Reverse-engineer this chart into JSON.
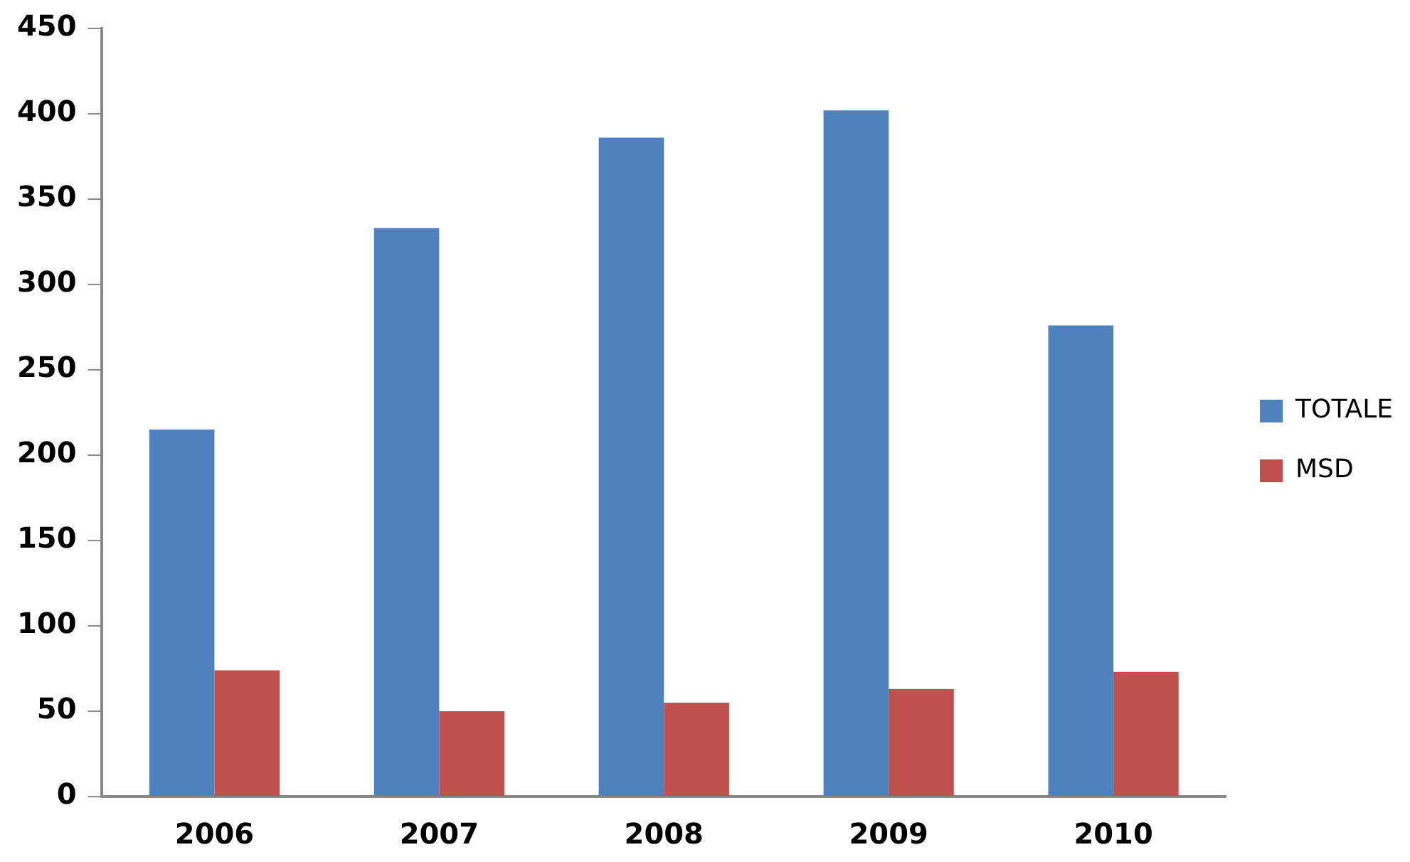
{
  "chart_data": {
    "type": "bar",
    "categories": [
      "2006",
      "2007",
      "2008",
      "2009",
      "2010"
    ],
    "series": [
      {
        "name": "TOTALE",
        "color": "#4f81bd",
        "values": [
          215,
          333,
          386,
          402,
          276
        ]
      },
      {
        "name": "MSD",
        "color": "#c0504d",
        "values": [
          74,
          50,
          55,
          63,
          73
        ]
      }
    ],
    "ylim": [
      0,
      450
    ],
    "yticks": [
      0,
      50,
      100,
      150,
      200,
      250,
      300,
      350,
      400,
      450
    ],
    "grid": false,
    "legend": "right"
  }
}
